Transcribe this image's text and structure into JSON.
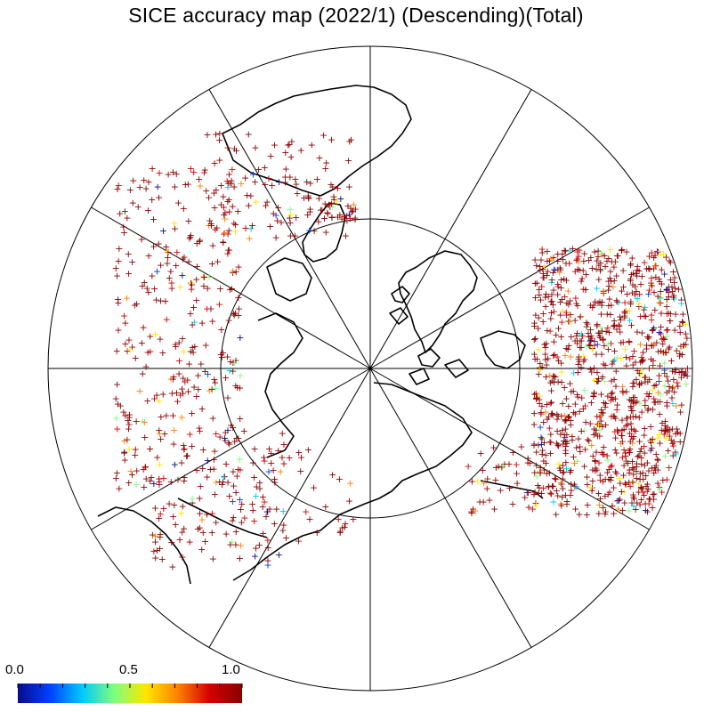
{
  "title": "SICE accuracy map (2022/1) (Descending)(Total)",
  "colorbar": {
    "min_label": "0.0",
    "mid_label": "0.5",
    "max_label": "1.0",
    "colors": [
      "#0a0a8c",
      "#0040ff",
      "#00c8ff",
      "#7dff7d",
      "#ffe600",
      "#ff8000",
      "#d20000",
      "#8b0000"
    ]
  },
  "map": {
    "projection": "north polar stereographic",
    "meridian_spokes": 12,
    "inner_circle": true,
    "marker": "+",
    "dominant_value": "high (dark red)"
  }
}
